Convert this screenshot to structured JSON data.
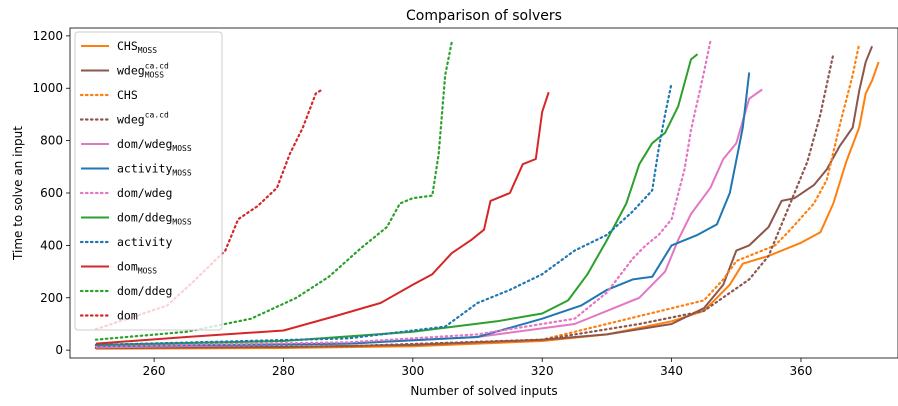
{
  "chart_data": {
    "type": "line",
    "title": "Comparison of solvers",
    "xlabel": "Number of solved inputs",
    "ylabel": "Time to solve an input",
    "xlim": [
      247,
      375
    ],
    "ylim": [
      -30,
      1230
    ],
    "xticks": [
      260,
      280,
      300,
      320,
      340,
      360
    ],
    "yticks": [
      0,
      200,
      400,
      600,
      800,
      1000,
      1200
    ],
    "grid": false,
    "legend_position": "top-left",
    "series": [
      {
        "name": "CHS",
        "sub": "MOSS",
        "sup": "",
        "color": "#ff7f0e",
        "dash": "solid",
        "points": [
          [
            251,
            5
          ],
          [
            280,
            8
          ],
          [
            300,
            15
          ],
          [
            320,
            35
          ],
          [
            330,
            60
          ],
          [
            340,
            110
          ],
          [
            345,
            150
          ],
          [
            349,
            250
          ],
          [
            351,
            330
          ],
          [
            355,
            360
          ],
          [
            360,
            410
          ],
          [
            363,
            450
          ],
          [
            365,
            560
          ],
          [
            367,
            720
          ],
          [
            369,
            850
          ],
          [
            370,
            980
          ],
          [
            371,
            1030
          ],
          [
            372,
            1100
          ]
        ]
      },
      {
        "name": "wdeg",
        "sub": "MOSS",
        "sup": "ca.cd",
        "color": "#8c564b",
        "dash": "solid",
        "points": [
          [
            251,
            8
          ],
          [
            280,
            12
          ],
          [
            300,
            20
          ],
          [
            320,
            40
          ],
          [
            330,
            60
          ],
          [
            340,
            100
          ],
          [
            345,
            160
          ],
          [
            348,
            250
          ],
          [
            350,
            380
          ],
          [
            352,
            400
          ],
          [
            355,
            470
          ],
          [
            357,
            570
          ],
          [
            359,
            580
          ],
          [
            362,
            630
          ],
          [
            364,
            690
          ],
          [
            366,
            780
          ],
          [
            368,
            850
          ],
          [
            369,
            990
          ],
          [
            370,
            1100
          ],
          [
            371,
            1160
          ]
        ]
      },
      {
        "name": "CHS",
        "sub": "",
        "sup": "",
        "color": "#ff7f0e",
        "dash": "dotted",
        "points": [
          [
            251,
            10
          ],
          [
            290,
            15
          ],
          [
            320,
            40
          ],
          [
            335,
            130
          ],
          [
            345,
            190
          ],
          [
            348,
            270
          ],
          [
            350,
            340
          ],
          [
            353,
            370
          ],
          [
            356,
            400
          ],
          [
            358,
            450
          ],
          [
            362,
            560
          ],
          [
            364,
            650
          ],
          [
            366,
            860
          ],
          [
            368,
            1050
          ],
          [
            369,
            1170
          ]
        ]
      },
      {
        "name": "wdeg",
        "sub": "",
        "sup": "ca.cd",
        "color": "#8c564b",
        "dash": "dotted",
        "points": [
          [
            251,
            8
          ],
          [
            290,
            15
          ],
          [
            320,
            40
          ],
          [
            335,
            100
          ],
          [
            345,
            150
          ],
          [
            352,
            270
          ],
          [
            355,
            360
          ],
          [
            357,
            480
          ],
          [
            359,
            600
          ],
          [
            361,
            720
          ],
          [
            363,
            900
          ],
          [
            365,
            1130
          ]
        ]
      },
      {
        "name": "dom/wdeg",
        "sub": "MOSS",
        "sup": "",
        "color": "#e377c2",
        "dash": "solid",
        "points": [
          [
            251,
            10
          ],
          [
            290,
            25
          ],
          [
            310,
            50
          ],
          [
            325,
            100
          ],
          [
            335,
            200
          ],
          [
            339,
            300
          ],
          [
            341,
            420
          ],
          [
            343,
            520
          ],
          [
            346,
            620
          ],
          [
            348,
            730
          ],
          [
            350,
            790
          ],
          [
            352,
            960
          ],
          [
            354,
            995
          ]
        ]
      },
      {
        "name": "activity",
        "sub": "MOSS",
        "sup": "",
        "color": "#1f77b4",
        "dash": "solid",
        "points": [
          [
            251,
            15
          ],
          [
            290,
            25
          ],
          [
            310,
            50
          ],
          [
            320,
            120
          ],
          [
            326,
            170
          ],
          [
            330,
            230
          ],
          [
            334,
            270
          ],
          [
            337,
            280
          ],
          [
            340,
            400
          ],
          [
            344,
            440
          ],
          [
            347,
            480
          ],
          [
            349,
            600
          ],
          [
            351,
            850
          ],
          [
            352,
            1060
          ]
        ]
      },
      {
        "name": "dom/wdeg",
        "sub": "",
        "sup": "",
        "color": "#e377c2",
        "dash": "dotted",
        "points": [
          [
            251,
            15
          ],
          [
            290,
            30
          ],
          [
            310,
            60
          ],
          [
            325,
            120
          ],
          [
            330,
            220
          ],
          [
            334,
            350
          ],
          [
            336,
            400
          ],
          [
            338,
            440
          ],
          [
            340,
            500
          ],
          [
            342,
            690
          ],
          [
            343,
            840
          ],
          [
            345,
            1060
          ],
          [
            346,
            1180
          ]
        ]
      },
      {
        "name": "dom/ddeg",
        "sub": "MOSS",
        "sup": "",
        "color": "#2ca02c",
        "dash": "solid",
        "points": [
          [
            251,
            20
          ],
          [
            280,
            35
          ],
          [
            300,
            70
          ],
          [
            313,
            110
          ],
          [
            320,
            140
          ],
          [
            324,
            190
          ],
          [
            327,
            290
          ],
          [
            330,
            420
          ],
          [
            333,
            560
          ],
          [
            335,
            710
          ],
          [
            337,
            790
          ],
          [
            339,
            830
          ],
          [
            341,
            930
          ],
          [
            343,
            1110
          ],
          [
            344,
            1130
          ]
        ]
      },
      {
        "name": "activity",
        "sub": "",
        "sup": "",
        "color": "#1f77b4",
        "dash": "dotted",
        "points": [
          [
            251,
            20
          ],
          [
            290,
            45
          ],
          [
            305,
            90
          ],
          [
            310,
            180
          ],
          [
            315,
            230
          ],
          [
            320,
            290
          ],
          [
            325,
            380
          ],
          [
            330,
            440
          ],
          [
            334,
            530
          ],
          [
            337,
            610
          ],
          [
            338,
            770
          ],
          [
            339,
            900
          ],
          [
            340,
            1020
          ]
        ]
      },
      {
        "name": "dom",
        "sub": "MOSS",
        "sup": "",
        "color": "#d62728",
        "dash": "solid",
        "points": [
          [
            251,
            25
          ],
          [
            265,
            50
          ],
          [
            280,
            75
          ],
          [
            288,
            130
          ],
          [
            295,
            180
          ],
          [
            300,
            250
          ],
          [
            303,
            290
          ],
          [
            306,
            370
          ],
          [
            309,
            420
          ],
          [
            311,
            460
          ],
          [
            312,
            570
          ],
          [
            315,
            600
          ],
          [
            317,
            710
          ],
          [
            319,
            730
          ],
          [
            320,
            910
          ],
          [
            321,
            985
          ]
        ]
      },
      {
        "name": "dom/ddeg",
        "sub": "",
        "sup": "",
        "color": "#2ca02c",
        "dash": "dotted",
        "points": [
          [
            251,
            40
          ],
          [
            265,
            70
          ],
          [
            275,
            120
          ],
          [
            282,
            200
          ],
          [
            287,
            280
          ],
          [
            292,
            390
          ],
          [
            296,
            470
          ],
          [
            298,
            560
          ],
          [
            300,
            580
          ],
          [
            303,
            590
          ],
          [
            304,
            750
          ],
          [
            305,
            1050
          ],
          [
            306,
            1175
          ]
        ]
      },
      {
        "name": "dom",
        "sub": "",
        "sup": "",
        "color": "#d62728",
        "dash": "dotted",
        "points": [
          [
            251,
            80
          ],
          [
            262,
            170
          ],
          [
            266,
            260
          ],
          [
            271,
            380
          ],
          [
            273,
            500
          ],
          [
            276,
            550
          ],
          [
            279,
            620
          ],
          [
            281,
            750
          ],
          [
            283,
            850
          ],
          [
            285,
            980
          ],
          [
            286,
            995
          ]
        ]
      }
    ]
  }
}
